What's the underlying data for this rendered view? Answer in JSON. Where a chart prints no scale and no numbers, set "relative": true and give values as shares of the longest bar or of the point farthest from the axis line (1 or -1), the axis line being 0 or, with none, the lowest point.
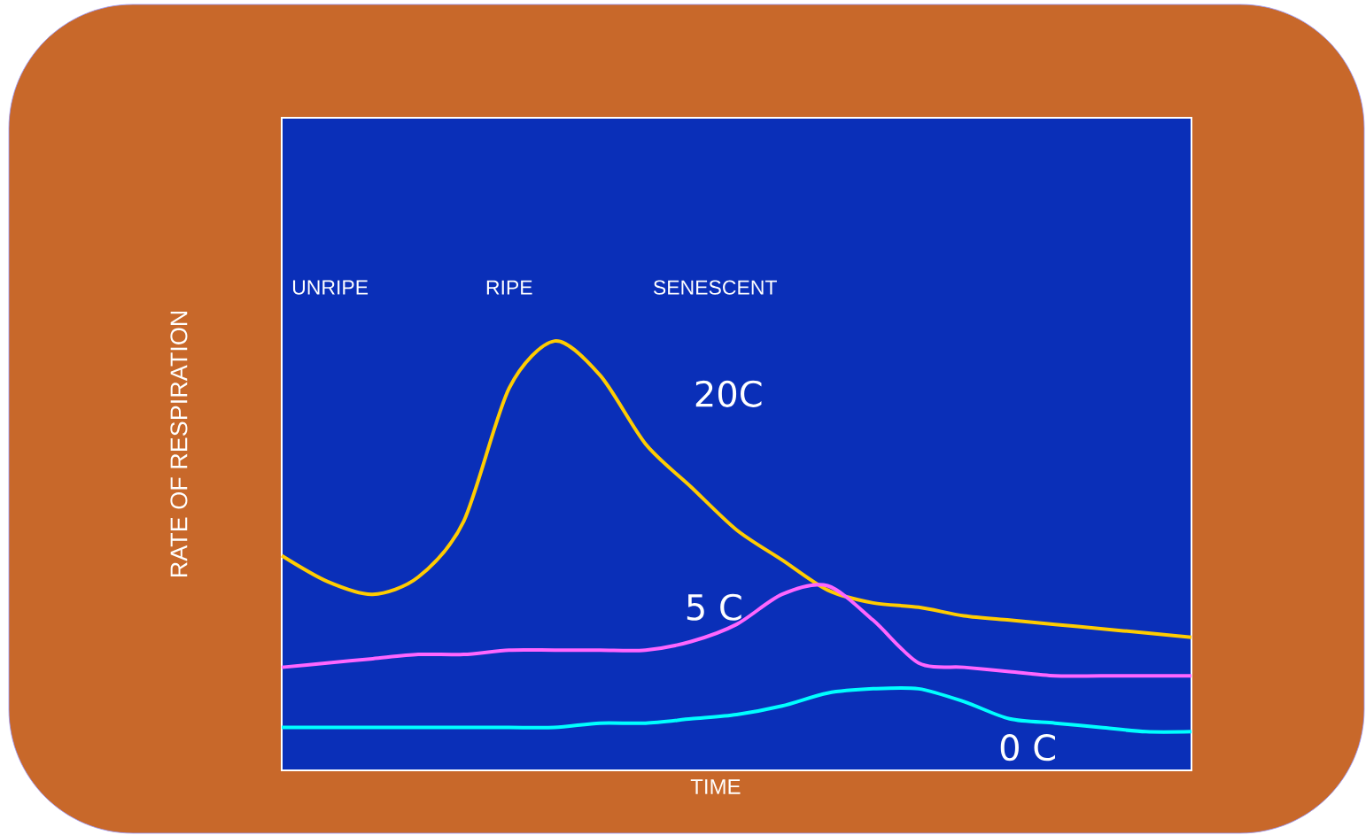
{
  "chart_data": {
    "type": "line",
    "relative": true,
    "xlabel": "TIME",
    "ylabel": "RATE OF RESPIRATION",
    "annotations": [
      "UNRIPE",
      "RIPE",
      "SENESCENT"
    ],
    "categories": [
      null,
      null,
      null,
      null,
      null,
      null,
      null,
      null,
      null,
      null,
      null,
      null,
      null,
      null,
      null,
      null,
      null,
      null,
      null,
      null,
      null
    ],
    "series": [
      {
        "name": "20C",
        "color": "#ffcc00",
        "values": [
          0.5,
          0.44,
          0.41,
          0.45,
          0.58,
          0.89,
          1,
          0.92,
          0.76,
          0.66,
          0.56,
          0.49,
          0.42,
          0.39,
          0.38,
          0.36,
          0.35,
          0.34,
          0.33,
          0.32,
          0.31
        ]
      },
      {
        "name": "5 C",
        "color": "#ff66ff",
        "values": [
          0.24,
          0.25,
          0.26,
          0.27,
          0.27,
          0.28,
          0.28,
          0.28,
          0.28,
          0.3,
          0.34,
          0.41,
          0.43,
          0.35,
          0.25,
          0.24,
          0.23,
          0.22,
          0.22,
          0.22,
          0.22
        ]
      },
      {
        "name": "0 C",
        "color": "#00ffff",
        "values": [
          0.1,
          0.1,
          0.1,
          0.1,
          0.1,
          0.1,
          0.1,
          0.11,
          0.11,
          0.12,
          0.13,
          0.15,
          0.18,
          0.19,
          0.19,
          0.16,
          0.12,
          0.11,
          0.1,
          0.09,
          0.09
        ]
      }
    ],
    "marker": "none",
    "line_style": "solid"
  }
}
